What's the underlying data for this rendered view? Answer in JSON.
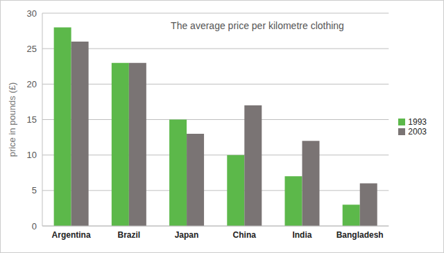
{
  "chart_data": {
    "type": "bar",
    "title": "The average price per kilometre clothing",
    "y_label": "price in pounds (£)",
    "categories": [
      "Argentina",
      "Brazil",
      "Japan",
      "China",
      "India",
      "Bangladesh"
    ],
    "series": [
      {
        "name": "1993",
        "color": "#5cb84a",
        "values": [
          28,
          23,
          15,
          10,
          7,
          3
        ]
      },
      {
        "name": "2003",
        "color": "#7a7474",
        "values": [
          26,
          23,
          13,
          17,
          12,
          6
        ]
      }
    ],
    "ylim": [
      0,
      30
    ],
    "yticks": [
      0,
      5,
      10,
      15,
      20,
      25,
      30
    ],
    "grid": true,
    "legend": "right"
  }
}
